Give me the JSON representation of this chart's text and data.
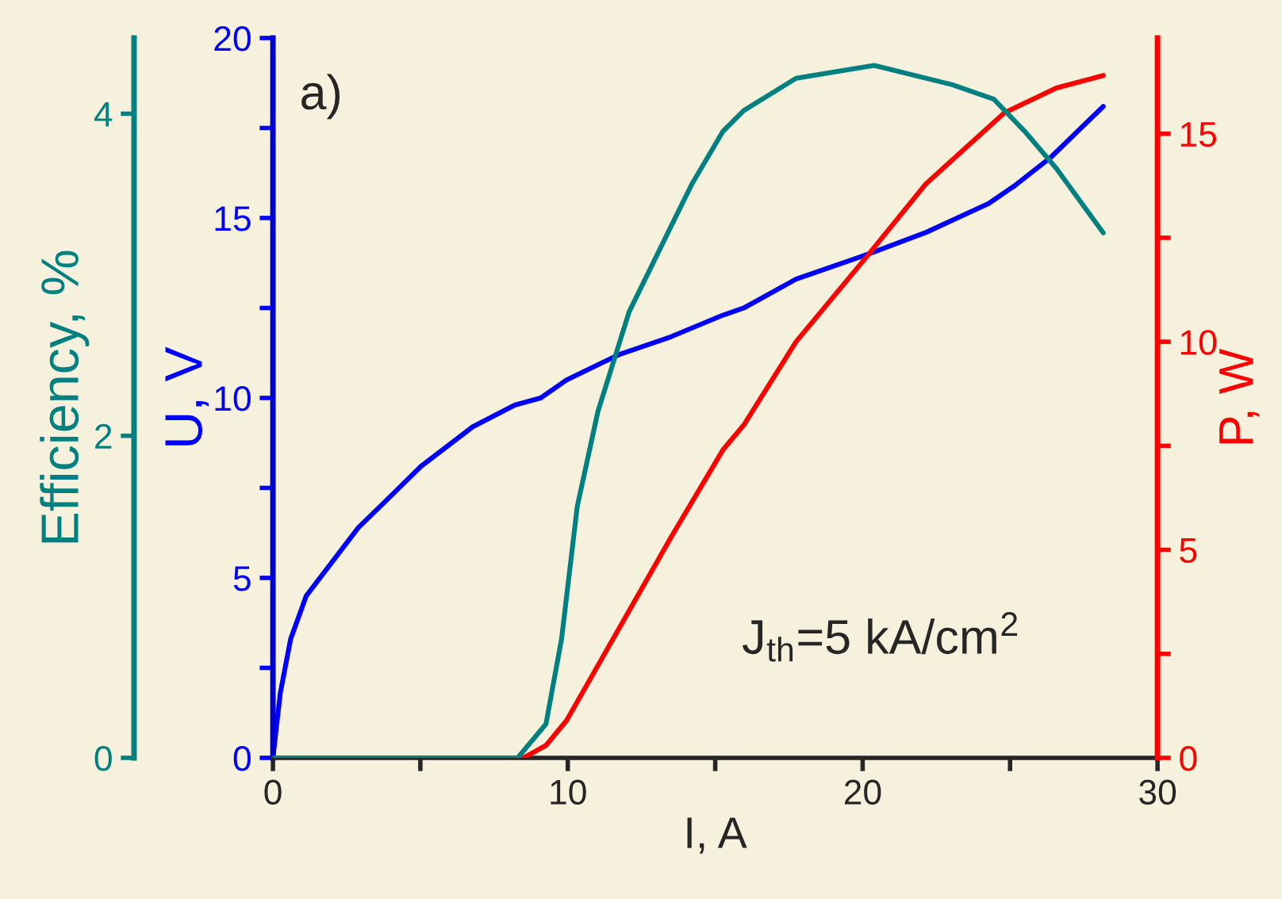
{
  "chart_data": {
    "type": "line",
    "xlabel": "I, A",
    "ylabel": "U, V",
    "y2label": "P, W",
    "y3label": "Efficiency, %",
    "annotations": [
      "a)",
      "J$_{th}$=5 kA/cm$^{2}$"
    ],
    "xlim": [
      0,
      30
    ],
    "xticks": [
      0,
      {
        "value": 5,
        "label": null
      },
      10,
      {
        "value": 15,
        "label": null
      },
      20,
      {
        "value": 25,
        "label": null
      },
      30
    ],
    "ylim": [
      0,
      20
    ],
    "yticks": [
      0,
      {
        "value": 2.5,
        "label": null
      },
      5,
      {
        "value": 7.5,
        "label": null
      },
      10,
      {
        "value": 12.5,
        "label": null
      },
      15,
      {
        "value": 17.5,
        "label": null
      },
      20
    ],
    "y2lim": [
      0,
      17.3
    ],
    "y2ticks": [
      0,
      {
        "value": 2.5,
        "label": null
      },
      5,
      {
        "value": 7.5,
        "label": null
      },
      10,
      {
        "value": 12.5,
        "label": null
      },
      15
    ],
    "y3lim": [
      0,
      4.47
    ],
    "y3ticks": [
      0,
      2,
      4
    ],
    "grid": false,
    "legend": false,
    "marker": "none",
    "line_style": "solid",
    "series": [
      {
        "color": "#0000ff",
        "axis": "y",
        "x": [
          0,
          0.25,
          0.6,
          1.13,
          2.9,
          3.78,
          5.02,
          6.78,
          8.2,
          9.08,
          9.96,
          11.73,
          13.5,
          15.26,
          15.97,
          17.74,
          20.2,
          22.15,
          24.27,
          25.16,
          26.4,
          28.16
        ],
        "values": [
          0,
          1.8,
          3.3,
          4.5,
          6.4,
          7.1,
          8.1,
          9.2,
          9.8,
          10.0,
          10.5,
          11.2,
          11.7,
          12.3,
          12.5,
          13.3,
          14.0,
          14.6,
          15.4,
          15.9,
          16.7,
          18.1
        ]
      },
      {
        "color": "#ff0000",
        "axis": "y2",
        "x": [
          0,
          8.5,
          9.26,
          9.96,
          11.73,
          13.5,
          15.26,
          15.97,
          17.74,
          20.2,
          22.15,
          24.8,
          26.57,
          28.16
        ],
        "values": [
          0,
          0,
          0.3,
          0.9,
          3.1,
          5.3,
          7.4,
          8.0,
          10.0,
          12.1,
          13.8,
          15.5,
          16.1,
          16.4
        ]
      },
      {
        "color": "#008080",
        "axis": "y3",
        "x": [
          0,
          8.3,
          9.26,
          9.79,
          10.32,
          11.02,
          12.08,
          13.5,
          14.2,
          15.26,
          15.97,
          17.74,
          20.39,
          23.04,
          24.45,
          25.5,
          26.57,
          28.16
        ],
        "values": [
          0,
          0,
          0.21,
          0.74,
          1.56,
          2.15,
          2.77,
          3.3,
          3.56,
          3.89,
          4.02,
          4.22,
          4.3,
          4.18,
          4.09,
          3.89,
          3.66,
          3.26
        ]
      }
    ]
  }
}
